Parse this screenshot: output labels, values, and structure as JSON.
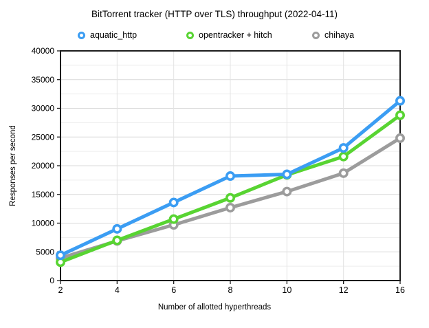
{
  "chart_data": {
    "type": "line",
    "title": "BitTorrent tracker (HTTP over TLS) throughput (2022-04-11)",
    "xlabel": "Number of allotted hyperthreads",
    "ylabel": "Responses per second",
    "categories": [
      2,
      4,
      6,
      8,
      10,
      12,
      16
    ],
    "x_axis_style": "categorical-even-spacing",
    "x_tick_labels": [
      "2",
      "4",
      "6",
      "8",
      "10",
      "12",
      "16"
    ],
    "ylim": [
      0,
      40000
    ],
    "y_major_step": 5000,
    "y_minor_step": 2500,
    "y_tick_labels": [
      "0",
      "5000",
      "10000",
      "15000",
      "20000",
      "25000",
      "30000",
      "35000",
      "40000"
    ],
    "grid": true,
    "legend_position": "top",
    "marker_style": "open-circle",
    "series": [
      {
        "name": "aquatic_http",
        "color": "#3B9DF3",
        "values": [
          4400,
          9000,
          13600,
          18200,
          18500,
          23100,
          31300
        ]
      },
      {
        "name": "opentracker + hitch",
        "color": "#58D432",
        "values": [
          3200,
          7000,
          10700,
          14400,
          18400,
          21600,
          28800
        ]
      },
      {
        "name": "chihaya",
        "color": "#9C9C9C",
        "values": [
          3900,
          6900,
          9700,
          12700,
          15500,
          18700,
          24800
        ]
      }
    ],
    "colors": {
      "background": "#ffffff",
      "frame": "#1c1c1c",
      "grid_major": "#d8d8d8",
      "grid_minor": "#ededed",
      "grid_vertical": "#e3e3e3",
      "text": "#000000",
      "marker_fill": "#ffffff"
    }
  }
}
